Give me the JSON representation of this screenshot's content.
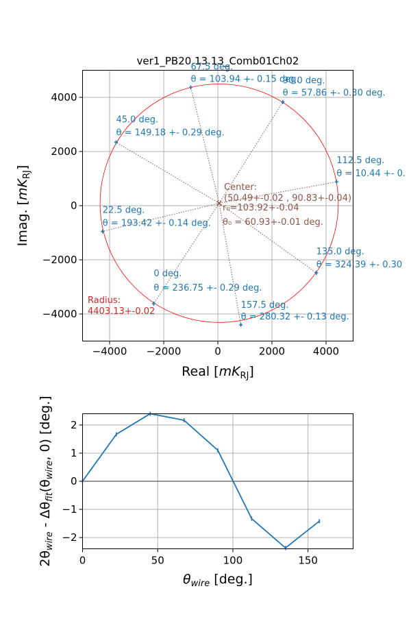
{
  "chart_data": [
    {
      "type": "scatter",
      "title": "ver1_PB20.13.13_Comb01Ch02",
      "xlabel": "Real [",
      "xlabel_math": "mK",
      "xlabel_sub": "RJ",
      "xlabel_end": "]",
      "ylabel": "Imag. [",
      "ylabel_math": "mK",
      "ylabel_sub": "RJ",
      "ylabel_end": "]",
      "xlim": [
        -5000,
        5000
      ],
      "ylim": [
        -5000,
        5000
      ],
      "xticks": [
        -4000,
        -2000,
        0,
        2000,
        4000
      ],
      "xtick_labels": [
        "−4000",
        "−2000",
        "0",
        "2000",
        "4000"
      ],
      "yticks": [
        -4000,
        -2000,
        0,
        2000,
        4000
      ],
      "ytick_labels": [
        "−4000",
        "−2000",
        "0",
        "2000",
        "4000"
      ],
      "grid": true,
      "colors": {
        "points": "#1f77b4",
        "circle": "#ff0000",
        "center": "#8c564b",
        "radius": "#d62728",
        "grid": "#b0b0b0"
      },
      "circle": {
        "center": [
          50.49,
          90.83
        ],
        "radius": 4403.13
      },
      "points": [
        {
          "angle_label": "0 deg.",
          "theta_label": "θ = 236.75 +- 0.29 deg.",
          "x": -2370,
          "y": -3620
        },
        {
          "angle_label": "22.5 deg.",
          "theta_label": "θ = 193.42 +- 0.14 deg.",
          "x": -4260,
          "y": -950
        },
        {
          "angle_label": "45.0 deg.",
          "theta_label": "θ = 149.18 +- 0.29 deg.",
          "x": -3760,
          "y": 2340
        },
        {
          "angle_label": "67.5 deg.",
          "theta_label": "θ = 103.94 +- 0.15 deg.",
          "x": -1000,
          "y": 4370
        },
        {
          "angle_label": "90.0 deg.",
          "theta_label": "θ = 57.86 +- 0.30 deg.",
          "x": 2400,
          "y": 3830
        },
        {
          "angle_label": "112.5 deg.",
          "theta_label": "θ = 10.44 +- 0.",
          "x": 4390,
          "y": 880
        },
        {
          "angle_label": "135.0 deg.",
          "theta_label": "θ = 324.39 +- 0.30",
          "x": 3640,
          "y": -2480
        },
        {
          "angle_label": "157.5 deg.",
          "theta_label": "θ = 280.32 +- 0.13 deg.",
          "x": 850,
          "y": -4400
        }
      ],
      "center_text": [
        "Center:",
        "(50.49+-0.02 , 90.83+-0.04)",
        "r₀=103.92+-0.04",
        "θ₀ = 60.93+-0.01 deg."
      ],
      "radius_text": [
        "Radius:",
        "4403.13+-0.02"
      ]
    },
    {
      "type": "line",
      "xlabel": "θ",
      "xlabel_sub": "wire",
      "xlabel_end": " [deg.]",
      "ylabel": "2θ",
      "ylabel_sub1": "wire",
      "ylabel_mid": " - Δθ",
      "ylabel_sub2": "fit",
      "ylabel_paren": "(θ",
      "ylabel_sub3": "wire",
      "ylabel_end": ", 0) [deg.]",
      "xlim": [
        0,
        180
      ],
      "ylim": [
        -2.4,
        2.4
      ],
      "xticks": [
        0,
        50,
        100,
        150
      ],
      "xtick_labels": [
        "0",
        "50",
        "100",
        "150"
      ],
      "yticks": [
        -2,
        -1,
        0,
        1,
        2
      ],
      "ytick_labels": [
        "−2",
        "−1",
        "0",
        "1",
        "2"
      ],
      "grid": true,
      "zero_line": true,
      "colors": {
        "line": "#1f77b4",
        "grid": "#b0b0b0"
      },
      "series": [
        {
          "x": [
            0,
            22.5,
            45,
            67.5,
            90,
            112.5,
            135,
            157.5
          ],
          "y": [
            0,
            1.67,
            2.4,
            2.17,
            1.1,
            -1.33,
            -2.37,
            -1.42
          ]
        }
      ]
    }
  ]
}
